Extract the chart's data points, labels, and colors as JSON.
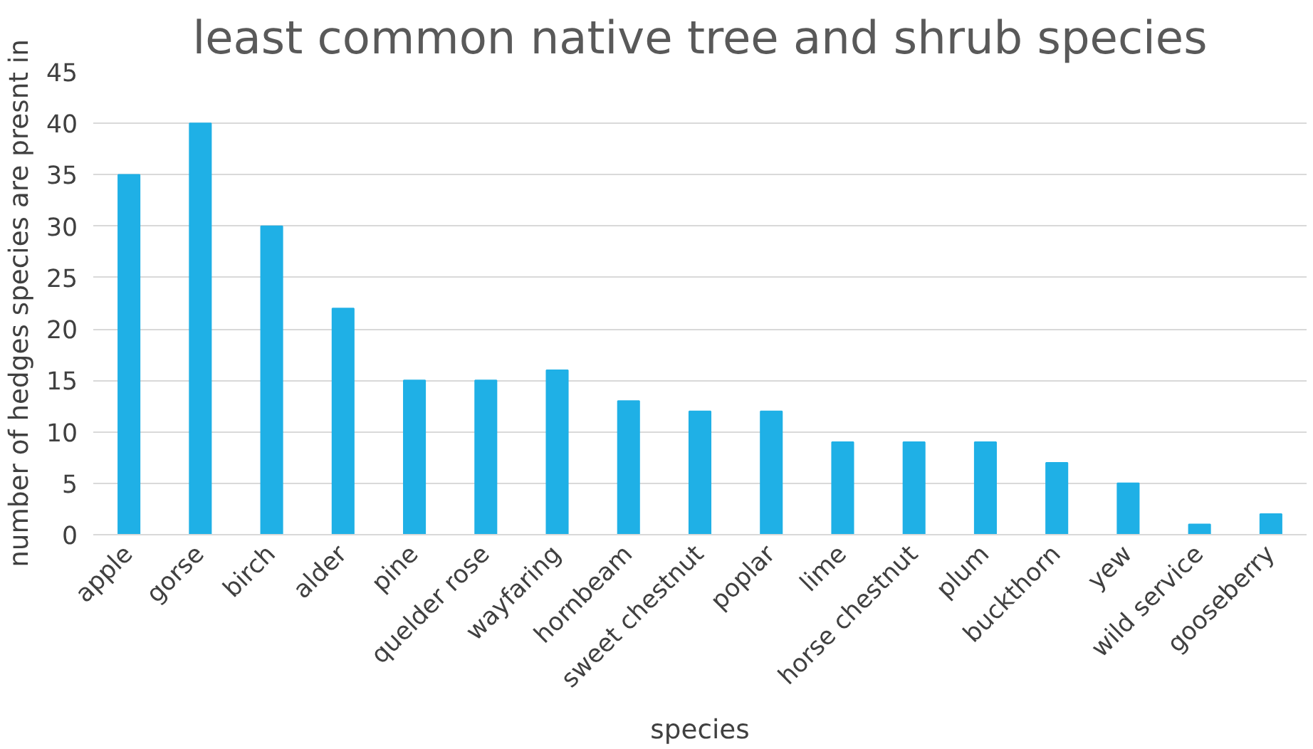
{
  "chart_data": {
    "type": "bar",
    "title": "least common native tree and shrub species",
    "xlabel": "species",
    "ylabel": "number of hedges species are presnt in",
    "categories": [
      "apple",
      "gorse",
      "birch",
      "alder",
      "pine",
      "quelder rose",
      "wayfaring",
      "hornbeam",
      "sweet chestnut",
      "poplar",
      "lime",
      "horse chestnut",
      "plum",
      "buckthorn",
      "yew",
      "wild service",
      "gooseberry"
    ],
    "values": [
      35,
      40,
      30,
      22,
      15,
      15,
      16,
      13,
      12,
      12,
      9,
      9,
      9,
      7,
      5,
      1,
      2
    ],
    "color": "#1fb0e6",
    "ylim": [
      0,
      45
    ],
    "yticks": [
      0,
      5,
      10,
      15,
      20,
      25,
      30,
      35,
      40,
      45
    ],
    "grid": "y"
  }
}
